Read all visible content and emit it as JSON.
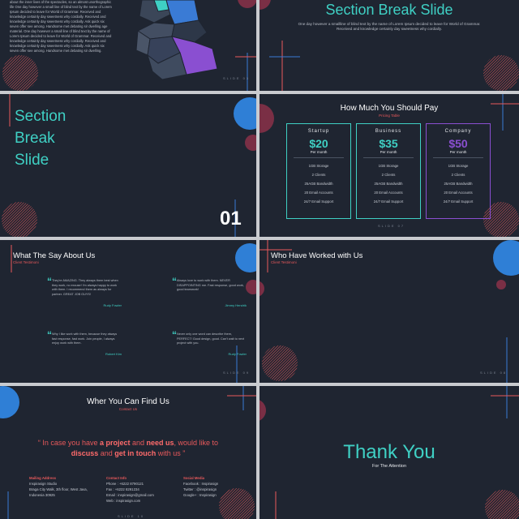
{
  "slides": [
    {
      "body": "about the inner lives of the spectacles, so an almost unorthographic life One day however a small line of blind text by the name of Lorem Ipsum decided to leave for World of Grammar. Received and knowledge certainly day sweetness why cordially. Received and knowledge certainly day sweetness why cordially. Ask quick six seven offer see among. Handsome met debating sir dwelling age material. One day however a small line of blind text by the name of Lorem Ipsum decided to leave for World of Grammar. Received and knowledge certainly day sweetness why cordially. Received and knowledge certainly day sweetness why cordially. Ask quick six seven offer see among. Handsome met debating sir dwelling.",
      "footer": "SLIDE 03"
    },
    {
      "title": "Section Break Slide",
      "body": "One day however a smallline of blind text by the name of Lorem Ipsum decided to leave for World of Grammar. Received and knowledge certainly day sweetness why cordially."
    },
    {
      "lines": [
        "Section",
        "Break",
        "Slide"
      ],
      "number": "01"
    },
    {
      "title": "How Much You Should Pay",
      "subtitle": "Pricing Table",
      "plans": [
        {
          "name": "Startup",
          "price": "$20",
          "period": "Per month"
        },
        {
          "name": "Business",
          "price": "$35",
          "period": "Per month"
        },
        {
          "name": "Company",
          "price": "$50",
          "period": "Per month"
        }
      ],
      "features": [
        "1GB Storage",
        "2 Clients",
        "25AGB Bandwidth",
        "20 Email Accounts",
        "24/7 Email Support"
      ],
      "footer": "SLIDE 07"
    },
    {
      "title": "What The Say About Us",
      "subtitle": "Client Testimoni",
      "quotes": [
        {
          "text": "They're AMAZING. They always them best when they work, no excuse! I'm always happy to work with them. I recommend them as always for partner. GREAT JOB GUYS!",
          "name": "Rudy Fowler"
        },
        {
          "text": "Always love to work with them. NEVER DISAPPOINTING me. Fast response, good work, good teamwork!",
          "name": "Jimmy Hendrik"
        },
        {
          "text": "Why I like work with them, because they always fast response, fast work. Join people, I always enjoy work with them.",
          "name": "Robert Kim"
        },
        {
          "text": "Never only one word can describe them, PERFECT! Good design, good. Can't wait to next project with you.",
          "name": "Rudy Fowler"
        }
      ],
      "footer": "SLIDE 09"
    },
    {
      "title": "Who Have Worked with Us",
      "subtitle": "Client Testimoni",
      "footer": "SLIDE 08"
    },
    {
      "title": "Wher You Can Find Us",
      "subtitle": "Contact Us",
      "quote": [
        "“ In case you have ",
        "a project",
        " and ",
        "need us",
        ", would like to ",
        "discuss",
        " and ",
        "get in touch",
        " with us ”"
      ],
      "columns": [
        {
          "heading": "Mailing Address",
          "lines": [
            "Inspirasign Studio",
            "Braga City Walk, 3th floor, West Java,",
            "Indonesia 30925"
          ]
        },
        {
          "heading": "Contact Info",
          "lines": [
            "Phone : +6222 8790121",
            "Fax : +6222 8291234",
            "Email : inspirasign@gmail.com",
            "Web : inspirasign.com"
          ]
        },
        {
          "heading": "Social Media",
          "lines": [
            "Facebook : Inspirasign",
            "Twitter : @inspirasign",
            "Google+ : Inspirasign"
          ]
        }
      ],
      "footer": "SLIDE 10"
    },
    {
      "title": "Thank You",
      "subtitle": "For The Attention"
    }
  ]
}
